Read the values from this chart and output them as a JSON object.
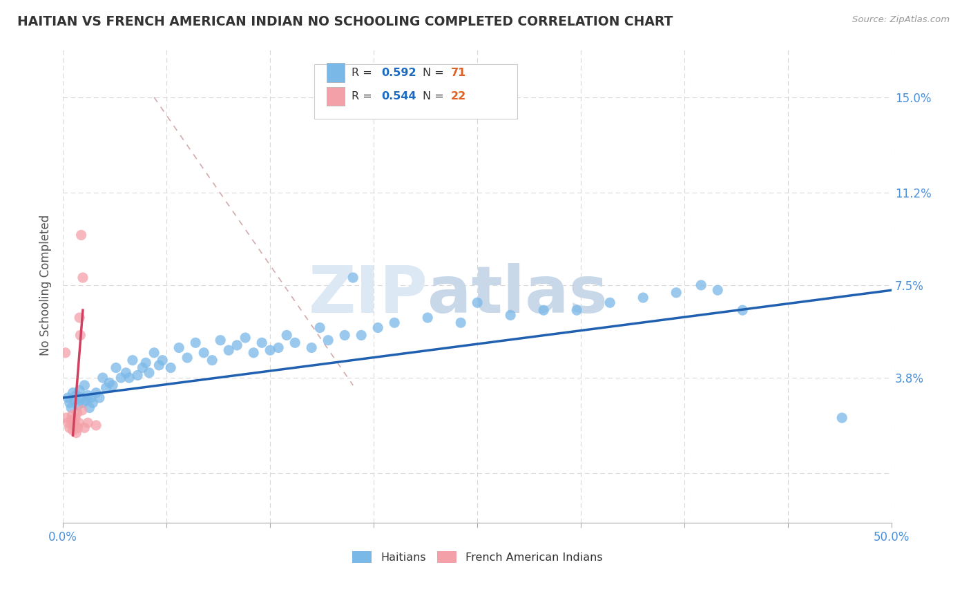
{
  "title": "HAITIAN VS FRENCH AMERICAN INDIAN NO SCHOOLING COMPLETED CORRELATION CHART",
  "source": "Source: ZipAtlas.com",
  "ylabel": "No Schooling Completed",
  "xlim": [
    0.0,
    50.0
  ],
  "ylim": [
    -2.0,
    17.0
  ],
  "xticks": [
    0.0,
    6.25,
    12.5,
    18.75,
    25.0,
    31.25,
    37.5,
    43.75,
    50.0
  ],
  "ytick_positions": [
    0.0,
    3.8,
    7.5,
    11.2,
    15.0
  ],
  "ytick_labels": [
    "",
    "3.8%",
    "7.5%",
    "11.2%",
    "15.0%"
  ],
  "haitian_color": "#7ab8e8",
  "french_color": "#f4a0a8",
  "haitian_R": "0.592",
  "haitian_N": "71",
  "french_R": "0.544",
  "french_N": "22",
  "legend_R_color": "#1a6bc1",
  "legend_N_color": "#e06020",
  "watermark_zip": "ZIP",
  "watermark_atlas": "atlas",
  "haitian_scatter": [
    [
      0.3,
      3.0
    ],
    [
      0.4,
      2.8
    ],
    [
      0.5,
      2.6
    ],
    [
      0.6,
      3.2
    ],
    [
      0.7,
      2.9
    ],
    [
      0.8,
      3.1
    ],
    [
      0.9,
      2.7
    ],
    [
      1.0,
      3.3
    ],
    [
      1.1,
      3.0
    ],
    [
      1.2,
      2.8
    ],
    [
      1.3,
      3.5
    ],
    [
      1.4,
      2.9
    ],
    [
      1.5,
      3.1
    ],
    [
      1.6,
      2.6
    ],
    [
      1.7,
      3.0
    ],
    [
      1.8,
      2.8
    ],
    [
      2.0,
      3.2
    ],
    [
      2.2,
      3.0
    ],
    [
      2.4,
      3.8
    ],
    [
      2.6,
      3.4
    ],
    [
      2.8,
      3.6
    ],
    [
      3.0,
      3.5
    ],
    [
      3.2,
      4.2
    ],
    [
      3.5,
      3.8
    ],
    [
      3.8,
      4.0
    ],
    [
      4.0,
      3.8
    ],
    [
      4.2,
      4.5
    ],
    [
      4.5,
      3.9
    ],
    [
      4.8,
      4.2
    ],
    [
      5.0,
      4.4
    ],
    [
      5.2,
      4.0
    ],
    [
      5.5,
      4.8
    ],
    [
      5.8,
      4.3
    ],
    [
      6.0,
      4.5
    ],
    [
      6.5,
      4.2
    ],
    [
      7.0,
      5.0
    ],
    [
      7.5,
      4.6
    ],
    [
      8.0,
      5.2
    ],
    [
      8.5,
      4.8
    ],
    [
      9.0,
      4.5
    ],
    [
      9.5,
      5.3
    ],
    [
      10.0,
      4.9
    ],
    [
      10.5,
      5.1
    ],
    [
      11.0,
      5.4
    ],
    [
      11.5,
      4.8
    ],
    [
      12.0,
      5.2
    ],
    [
      12.5,
      4.9
    ],
    [
      13.0,
      5.0
    ],
    [
      13.5,
      5.5
    ],
    [
      14.0,
      5.2
    ],
    [
      15.0,
      5.0
    ],
    [
      15.5,
      5.8
    ],
    [
      16.0,
      5.3
    ],
    [
      17.0,
      5.5
    ],
    [
      17.5,
      7.8
    ],
    [
      18.0,
      5.5
    ],
    [
      19.0,
      5.8
    ],
    [
      20.0,
      6.0
    ],
    [
      22.0,
      6.2
    ],
    [
      24.0,
      6.0
    ],
    [
      25.0,
      6.8
    ],
    [
      27.0,
      6.3
    ],
    [
      29.0,
      6.5
    ],
    [
      31.0,
      6.5
    ],
    [
      33.0,
      6.8
    ],
    [
      35.0,
      7.0
    ],
    [
      37.0,
      7.2
    ],
    [
      38.5,
      7.5
    ],
    [
      39.5,
      7.3
    ],
    [
      41.0,
      6.5
    ],
    [
      47.0,
      2.2
    ]
  ],
  "french_scatter": [
    [
      0.15,
      4.8
    ],
    [
      0.2,
      2.2
    ],
    [
      0.3,
      2.0
    ],
    [
      0.4,
      1.8
    ],
    [
      0.5,
      2.1
    ],
    [
      0.55,
      2.3
    ],
    [
      0.6,
      1.7
    ],
    [
      0.65,
      1.9
    ],
    [
      0.7,
      2.0
    ],
    [
      0.75,
      2.2
    ],
    [
      0.8,
      1.6
    ],
    [
      0.85,
      2.4
    ],
    [
      0.9,
      1.8
    ],
    [
      0.95,
      2.0
    ],
    [
      1.0,
      6.2
    ],
    [
      1.05,
      5.5
    ],
    [
      1.1,
      9.5
    ],
    [
      1.15,
      2.5
    ],
    [
      1.2,
      7.8
    ],
    [
      1.3,
      1.8
    ],
    [
      1.5,
      2.0
    ],
    [
      2.0,
      1.9
    ]
  ],
  "diag_line_color": "#d4aaaa",
  "diag_line_x": [
    5.5,
    17.5
  ],
  "diag_line_y": [
    15.0,
    3.5
  ],
  "blue_line_color": "#2060b0",
  "blue_line_x": [
    0.0,
    50.0
  ],
  "blue_line_y": [
    3.0,
    7.3
  ],
  "pink_line_x": [
    0.6,
    1.2
  ],
  "pink_line_y": [
    1.5,
    6.5
  ],
  "pink_line_color": "#d04060",
  "background_color": "#ffffff",
  "grid_color": "#d8d8d8"
}
